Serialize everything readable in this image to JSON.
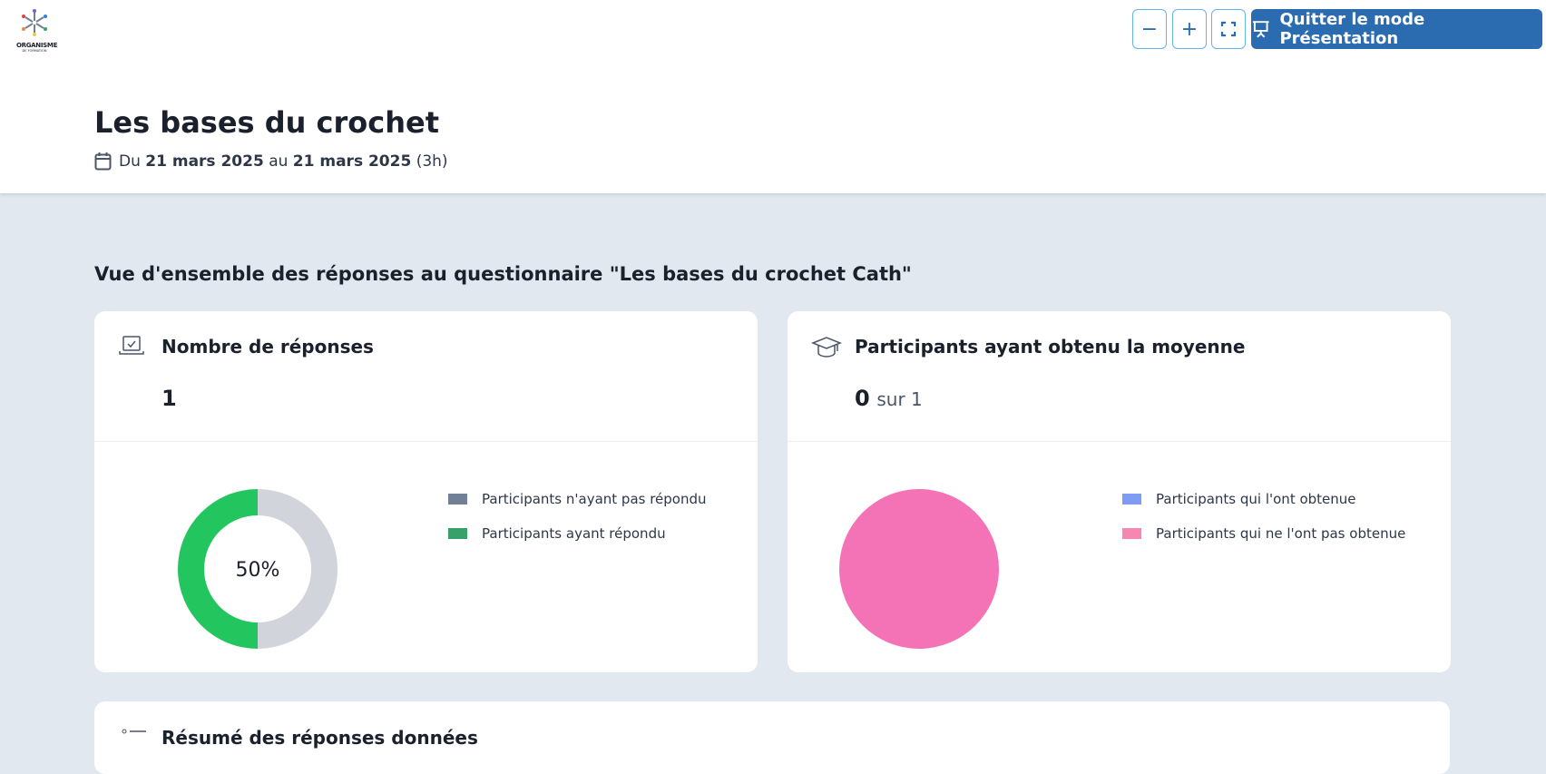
{
  "header": {
    "logo": {
      "line1": "ORGANISME",
      "line2": "DE FORMATION"
    },
    "toolbar": {
      "zoom_out": "−",
      "zoom_in": "+",
      "quit_label": "Quitter le mode Présentation"
    },
    "title": "Les bases du crochet",
    "dates": {
      "prefix": "Du",
      "start": "21 mars 2025",
      "mid": "au",
      "end": "21 mars 2025",
      "duration": "(3h)"
    }
  },
  "section_title": "Vue d'ensemble des réponses au questionnaire \"Les bases du crochet Cath\"",
  "cards": [
    {
      "title": "Nombre de réponses",
      "value": "1",
      "center_label": "50%",
      "legend": [
        {
          "label": "Participants n'ayant pas répondu",
          "color": "#718096"
        },
        {
          "label": "Participants ayant répondu",
          "color": "#38a169"
        }
      ]
    },
    {
      "title": "Participants ayant obtenu la moyenne",
      "value": "0",
      "value_suffix": "sur 1",
      "legend": [
        {
          "label": "Participants qui l'ont obtenue",
          "color": "#7f9cf5"
        },
        {
          "label": "Participants qui ne l'ont pas obtenue",
          "color": "#f687b3"
        }
      ]
    }
  ],
  "next_card_title": "Résumé des réponses données",
  "chart_data": [
    {
      "type": "pie",
      "variant": "doughnut",
      "categories": [
        "Participants n'ayant pas répondu",
        "Participants ayant répondu"
      ],
      "values": [
        50,
        50
      ],
      "colors": [
        "#d1d5db",
        "#22c55e"
      ],
      "center_label": "50%",
      "legend": "right"
    },
    {
      "type": "pie",
      "categories": [
        "Participants qui l'ont obtenue",
        "Participants qui ne l'ont pas obtenue"
      ],
      "values": [
        0,
        1
      ],
      "colors": [
        "#7f9cf5",
        "#f472b6"
      ],
      "legend": "right"
    }
  ]
}
